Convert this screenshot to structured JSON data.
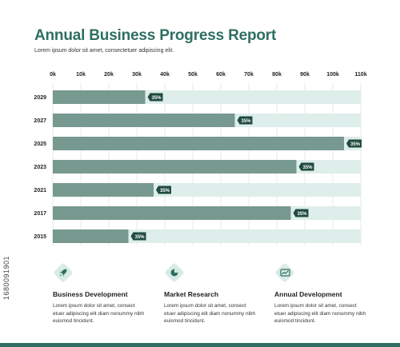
{
  "header": {
    "title": "Annual Business Progress Report",
    "subtitle": "Lorem ipsum dolor sit amet, consectetuer adipiscing elit."
  },
  "chart_data": {
    "type": "bar",
    "orientation": "horizontal",
    "categories": [
      "2029",
      "2027",
      "2025",
      "2023",
      "2021",
      "2017",
      "2015"
    ],
    "values": [
      33,
      65,
      104,
      87,
      36,
      85,
      27
    ],
    "max_values": [
      110,
      110,
      110,
      110,
      110,
      110,
      110
    ],
    "data_labels": [
      "35%",
      "35%",
      "35%",
      "35%",
      "35%",
      "35%",
      "35%"
    ],
    "x_ticks": [
      "0k",
      "10k",
      "20k",
      "30k",
      "40k",
      "50k",
      "60k",
      "70k",
      "80k",
      "90k",
      "100k",
      "110k"
    ],
    "xlim": [
      0,
      110
    ],
    "grid": true,
    "colors": {
      "bar": "#77998f",
      "track": "#deeeea",
      "label_bg": "#1f4a3f",
      "label_text": "#ffffff"
    }
  },
  "features": [
    {
      "icon": "rocket-icon",
      "title": "Business Development",
      "text": "Lorem ipsum dolor sit amet, consect etuer adipiscing elit diam nonummy nibh euismod tincidunt."
    },
    {
      "icon": "pie-chart-icon",
      "title": "Market Research",
      "text": "Lorem ipsum dolor sit amet, consect etuer adipiscing elit diam nonummy nibh euismod tincidunt."
    },
    {
      "icon": "line-chart-icon",
      "title": "Annual Development",
      "text": "Lorem ipsum dolor sit amet, consect etuer adipiscing elit diam nonummy nibh euismod tincidunt."
    }
  ],
  "side_label": "1680091901",
  "colors": {
    "accent": "#2e6f62",
    "icon_bg": "#d9ebe6"
  }
}
